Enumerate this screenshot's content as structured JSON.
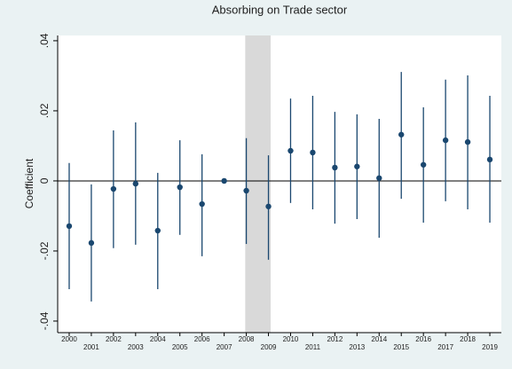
{
  "chart_data": {
    "type": "coefplot",
    "title": "Absorbing on Trade sector",
    "y_label": "Coefficient",
    "x": [
      2000,
      2001,
      2002,
      2003,
      2004,
      2005,
      2006,
      2007,
      2008,
      2009,
      2010,
      2011,
      2012,
      2013,
      2014,
      2015,
      2016,
      2017,
      2018,
      2019
    ],
    "series": [
      {
        "color": "#1a476f",
        "values": [
          -0.0129,
          -0.0177,
          -0.0023,
          -0.0008,
          -0.0142,
          -0.0018,
          -0.0066,
          0,
          -0.0028,
          -0.0073,
          0.0086,
          0.0081,
          0.0038,
          0.0041,
          0.0008,
          0.0132,
          0.0046,
          0.0116,
          0.0111,
          0.0061
        ],
        "lower": [
          -0.0309,
          -0.0344,
          -0.0192,
          -0.0182,
          -0.0309,
          -0.0154,
          -0.0215,
          0,
          -0.018,
          -0.0225,
          -0.0063,
          -0.0081,
          -0.0122,
          -0.0109,
          -0.0162,
          -0.0051,
          -0.0119,
          -0.0058,
          -0.0081,
          -0.0119
        ],
        "upper": [
          0.0051,
          -0.001,
          0.0144,
          0.0167,
          0.0023,
          0.0116,
          0.0076,
          0,
          0.0122,
          0.0073,
          0.0235,
          0.0243,
          0.0197,
          0.019,
          0.0177,
          0.0311,
          0.021,
          0.0289,
          0.0301,
          0.0243
        ]
      }
    ],
    "xlim": [
      1999.48,
      2019.52
    ],
    "xticks": [
      2000,
      2001,
      2002,
      2003,
      2004,
      2005,
      2006,
      2007,
      2008,
      2009,
      2010,
      2011,
      2012,
      2013,
      2014,
      2015,
      2016,
      2017,
      2018,
      2019
    ],
    "ylim": [
      -0.0433,
      0.0415
    ],
    "yticks": [
      {
        "value": -0.04,
        "label": "-.04"
      },
      {
        "value": -0.02,
        "label": "-.02"
      },
      0,
      {
        "value": 0.02,
        "label": ".02"
      },
      {
        "value": 0.04,
        "label": ".04"
      }
    ],
    "zero_line": 0,
    "shaded_x": [
      2007.95,
      2009.1
    ],
    "shade_color": "#d9d9d9"
  }
}
